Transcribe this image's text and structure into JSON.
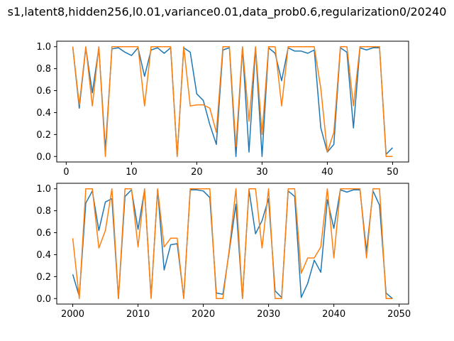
{
  "figure": {
    "title": "s1,latent8,hidden256,l0.01,variance0.01,data_prob0.6,regularization0/20240"
  },
  "colors": {
    "series_a": "#1f77b4",
    "series_b": "#ff7f0e"
  },
  "chart_data": [
    {
      "type": "line",
      "xlim": [
        -1.45,
        52.45
      ],
      "ylim": [
        -0.05,
        1.05
      ],
      "xticks": [
        0,
        10,
        20,
        30,
        40,
        50
      ],
      "yticks": [
        0.0,
        0.2,
        0.4,
        0.6,
        0.8,
        1.0
      ],
      "xtick_labels": [
        "0",
        "10",
        "20",
        "30",
        "40",
        "50"
      ],
      "ytick_labels": [
        "0.0",
        "0.2",
        "0.4",
        "0.6",
        "0.8",
        "1.0"
      ],
      "x": [
        1,
        2,
        3,
        4,
        5,
        6,
        7,
        8,
        9,
        10,
        11,
        12,
        13,
        14,
        15,
        16,
        17,
        18,
        19,
        20,
        21,
        22,
        23,
        24,
        25,
        26,
        27,
        28,
        29,
        30,
        31,
        32,
        33,
        34,
        35,
        36,
        37,
        38,
        39,
        40,
        41,
        42,
        43,
        44,
        45,
        46,
        47,
        48,
        49,
        50
      ],
      "series": [
        {
          "values": [
            1.0,
            0.44,
            0.99,
            0.58,
            0.99,
            0.06,
            0.98,
            0.99,
            0.95,
            0.92,
            0.99,
            0.73,
            0.97,
            0.99,
            0.94,
            0.99,
            0.0,
            0.99,
            0.95,
            0.57,
            0.51,
            0.29,
            0.11,
            0.97,
            0.99,
            0.0,
            0.99,
            0.04,
            0.99,
            0.0,
            0.99,
            0.94,
            0.69,
            0.99,
            0.96,
            0.96,
            0.94,
            0.97,
            0.26,
            0.04,
            0.11,
            0.99,
            0.95,
            0.26,
            0.99,
            0.97,
            0.99,
            0.99,
            0.02,
            0.08
          ]
        },
        {
          "values": [
            1.0,
            0.47,
            1.0,
            0.46,
            1.0,
            0.0,
            1.0,
            1.0,
            1.0,
            1.0,
            1.0,
            0.46,
            1.0,
            1.0,
            1.0,
            1.0,
            0.0,
            1.0,
            0.46,
            0.47,
            0.47,
            0.44,
            0.22,
            1.0,
            1.0,
            0.09,
            1.0,
            0.32,
            1.0,
            0.2,
            1.0,
            1.0,
            0.46,
            1.0,
            1.0,
            1.0,
            1.0,
            1.0,
            0.62,
            0.04,
            0.22,
            1.0,
            1.0,
            0.46,
            1.0,
            1.0,
            1.0,
            1.0,
            0.0,
            0.0
          ]
        }
      ]
    },
    {
      "type": "line",
      "xlim": [
        1997.55,
        2051.45
      ],
      "ylim": [
        -0.05,
        1.05
      ],
      "xticks": [
        2000,
        2010,
        2020,
        2030,
        2040,
        2050
      ],
      "yticks": [
        0.0,
        0.2,
        0.4,
        0.6,
        0.8,
        1.0
      ],
      "xtick_labels": [
        "2000",
        "2010",
        "2020",
        "2030",
        "2040",
        "2050"
      ],
      "ytick_labels": [
        "0.0",
        "0.2",
        "0.4",
        "0.6",
        "0.8",
        "1.0"
      ],
      "x": [
        2000,
        2001,
        2002,
        2003,
        2004,
        2005,
        2006,
        2007,
        2008,
        2009,
        2010,
        2011,
        2012,
        2013,
        2014,
        2015,
        2016,
        2017,
        2018,
        2019,
        2020,
        2021,
        2022,
        2023,
        2024,
        2025,
        2026,
        2027,
        2028,
        2029,
        2030,
        2031,
        2032,
        2033,
        2034,
        2035,
        2036,
        2037,
        2038,
        2039,
        2040,
        2041,
        2042,
        2043,
        2044,
        2045,
        2046,
        2047,
        2048,
        2049
      ],
      "series": [
        {
          "values": [
            0.22,
            0.02,
            0.87,
            0.98,
            0.62,
            0.88,
            0.91,
            0.0,
            0.93,
            0.99,
            0.63,
            0.99,
            0.01,
            0.99,
            0.26,
            0.49,
            0.5,
            0.01,
            0.99,
            0.99,
            0.98,
            0.92,
            0.05,
            0.04,
            0.44,
            0.86,
            0.0,
            0.99,
            0.59,
            0.71,
            0.91,
            0.07,
            0.01,
            0.98,
            0.93,
            0.01,
            0.14,
            0.35,
            0.24,
            0.9,
            0.64,
            0.99,
            0.97,
            0.99,
            0.99,
            0.43,
            0.98,
            0.85,
            0.05,
            0.0
          ]
        },
        {
          "values": [
            0.55,
            0.0,
            1.0,
            1.0,
            0.46,
            0.62,
            1.0,
            0.0,
            1.0,
            1.0,
            0.47,
            1.0,
            0.0,
            1.0,
            0.47,
            0.55,
            0.55,
            0.0,
            1.0,
            1.0,
            1.0,
            1.0,
            0.0,
            0.0,
            0.46,
            1.0,
            0.0,
            1.0,
            1.0,
            0.46,
            1.0,
            0.0,
            0.0,
            1.0,
            1.0,
            0.23,
            0.37,
            0.37,
            0.47,
            1.0,
            0.37,
            1.0,
            1.0,
            1.0,
            1.0,
            0.37,
            1.0,
            1.0,
            0.0,
            0.0
          ]
        }
      ]
    }
  ]
}
